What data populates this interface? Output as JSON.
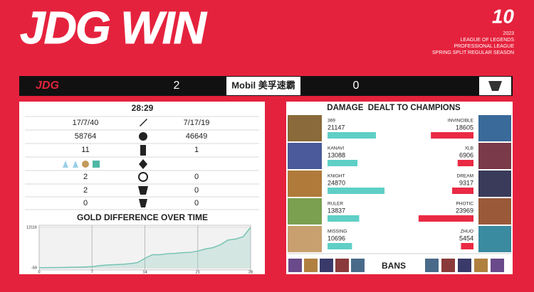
{
  "header": {
    "title": "JDG WIN",
    "logo": "10",
    "season_info": [
      "2023",
      "LEAGUE OF LEGENDS",
      "PROFESSIONAL LEAGUE",
      "SPRING SPLIT REGULAR SEASON"
    ]
  },
  "scoreboard": {
    "left_team": "JDG",
    "left_score": 2,
    "sponsor": "Mobil 美孚速霸",
    "right_score": 0
  },
  "stats": {
    "game_time": "28:29",
    "rows": [
      {
        "left": "17/7/40",
        "right": "7/17/19"
      },
      {
        "left": "58764",
        "right": "46649"
      },
      {
        "left": "11",
        "right": "1"
      },
      {
        "left": "2",
        "right": "0"
      },
      {
        "left": "2",
        "right": "0"
      },
      {
        "left": "0",
        "right": "0"
      }
    ]
  },
  "chart_data": {
    "type": "line",
    "title": "GOLD DIFFERENCE OVER TIME",
    "x": [
      0,
      1,
      2,
      3,
      4,
      5,
      6,
      7,
      8,
      9,
      10,
      11,
      12,
      13,
      14,
      15,
      16,
      17,
      18,
      19,
      20,
      21,
      22,
      23,
      24,
      25,
      26,
      27,
      28
    ],
    "series": [
      {
        "color": "#76c3b2",
        "values": [
          0,
          0,
          20,
          50,
          100,
          150,
          200,
          300,
          600,
          800,
          900,
          1000,
          1200,
          1500,
          2800,
          3900,
          3900,
          4200,
          4300,
          4500,
          4600,
          5000,
          5600,
          6000,
          6900,
          8300,
          8600,
          9300,
          12116
        ]
      }
    ],
    "xlim": [
      0,
      28
    ],
    "xticks": [
      0,
      7,
      14,
      21,
      28
    ],
    "ylim": [
      -59,
      12116
    ],
    "yticks": [
      -59,
      12116
    ],
    "grid": true
  },
  "damage": {
    "title": "DAMAGE  DEALT TO CHAMPIONS",
    "left_color": "#5fcfc6",
    "right_color": "#ea2a44",
    "players": [
      {
        "left_name": "369",
        "left_value": 21147,
        "right_name": "INVINCIBLE",
        "right_value": 18605
      },
      {
        "left_name": "KANAVI",
        "left_value": 13088,
        "right_name": "XLB",
        "right_value": 6906
      },
      {
        "left_name": "KNIGHT",
        "left_value": 24870,
        "right_name": "DREAM",
        "right_value": 9317
      },
      {
        "left_name": "RULER",
        "left_value": 13837,
        "right_name": "PHOTIC",
        "right_value": 23969
      },
      {
        "left_name": "MISSING",
        "left_value": 10696,
        "right_name": "ZHUO",
        "right_value": 5454
      }
    ]
  },
  "bans": {
    "label": "BANS"
  }
}
